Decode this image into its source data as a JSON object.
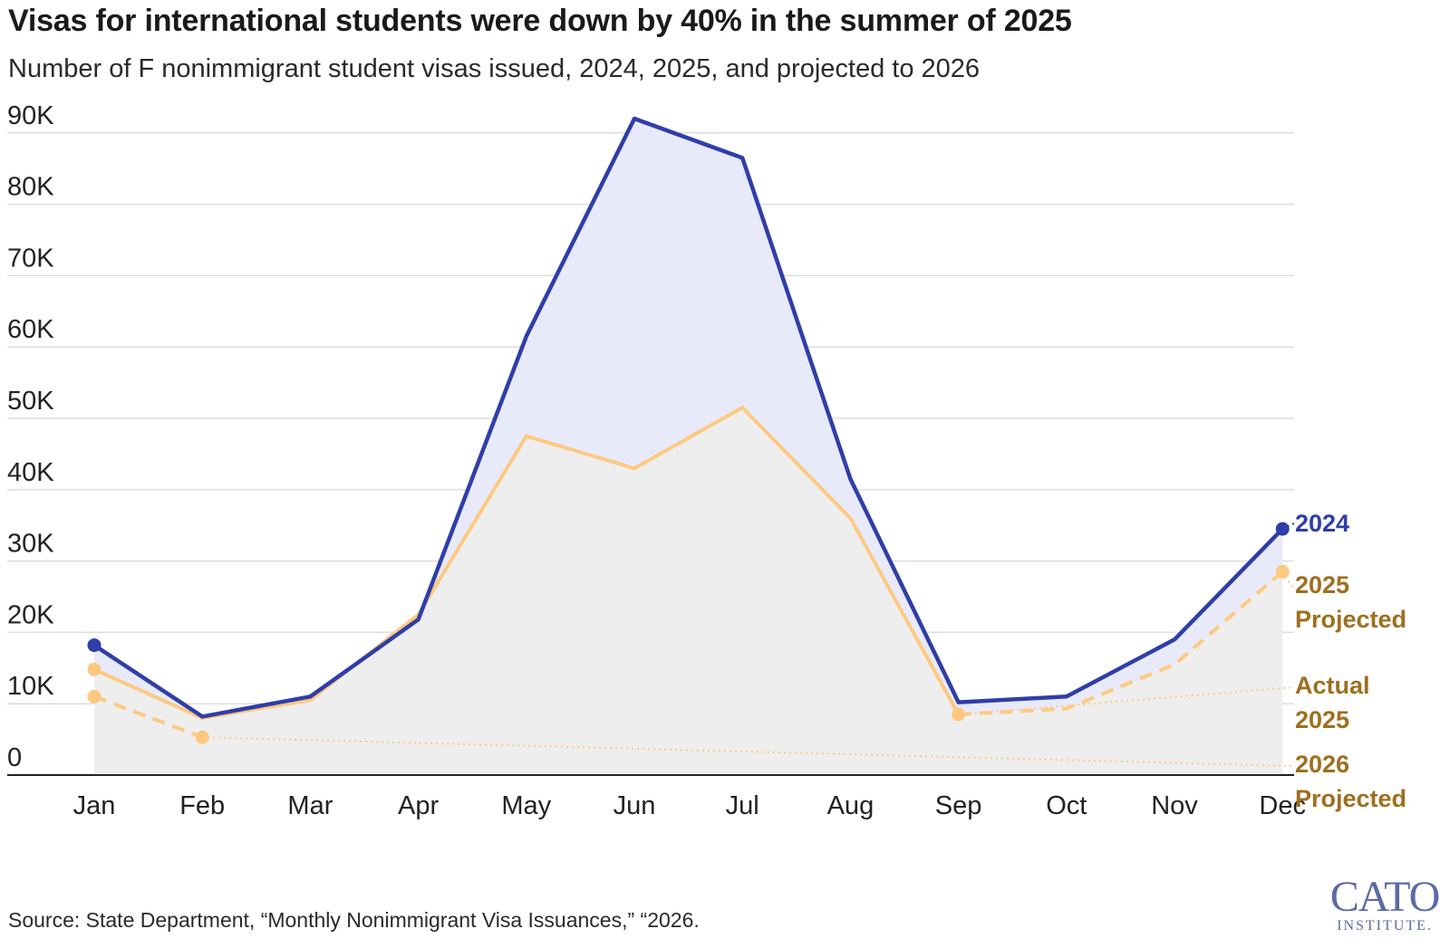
{
  "title": "Visas for international students were down by 40% in the summer of 2025",
  "subtitle": "Number of F nonimmigrant student visas issued, 2024, 2025, and projected to 2026",
  "source": "Source: State Department, “Monthly Nonimmigrant Visa Issuances,” “2026.",
  "logo": {
    "main": "CATO",
    "sub": "INSTITUTE."
  },
  "colors": {
    "series_2024": "#2f3ea8",
    "series_2025": "#fdc981",
    "fill_2024": "#e8eafa",
    "fill_2025": "#eeeeee",
    "label_2025": "#9e6f1f",
    "grid": "#dddddd",
    "axis": "#222222"
  },
  "chart_data": {
    "type": "line",
    "categories": [
      "Jan",
      "Feb",
      "Mar",
      "Apr",
      "May",
      "Jun",
      "Jul",
      "Aug",
      "Sep",
      "Oct",
      "Nov",
      "Dec"
    ],
    "ylim": [
      0,
      90000
    ],
    "yticks": [
      0,
      10000,
      20000,
      30000,
      40000,
      50000,
      60000,
      70000,
      80000,
      90000
    ],
    "ytick_labels": [
      "0",
      "10K",
      "20K",
      "30K",
      "40K",
      "50K",
      "60K",
      "70K",
      "80K",
      "90K"
    ],
    "grid": true,
    "series": [
      {
        "name": "2024",
        "label_lines": [
          "2024"
        ],
        "style": "solid",
        "area": true,
        "values": [
          18200,
          8200,
          11000,
          21800,
          61500,
          92000,
          86500,
          41500,
          10200,
          11000,
          19000,
          34500
        ]
      },
      {
        "name": "Actual 2025",
        "label_lines": [
          "Actual",
          "2025"
        ],
        "style": "solid",
        "area": true,
        "values": [
          14800,
          8000,
          10500,
          22500,
          47500,
          43000,
          51500,
          36000,
          8500,
          null,
          null,
          null
        ]
      },
      {
        "name": "2025 Projected",
        "label_lines": [
          "2025",
          "Projected"
        ],
        "style": "dashed",
        "area": false,
        "values": [
          null,
          null,
          null,
          null,
          null,
          null,
          null,
          null,
          8500,
          9300,
          15500,
          28500
        ]
      },
      {
        "name": "2026 Projected",
        "label_lines": [
          "2026",
          "Projected"
        ],
        "style": "dashed",
        "area": false,
        "values": [
          11000,
          5300,
          null,
          null,
          null,
          null,
          null,
          null,
          null,
          null,
          null,
          null
        ]
      }
    ]
  }
}
